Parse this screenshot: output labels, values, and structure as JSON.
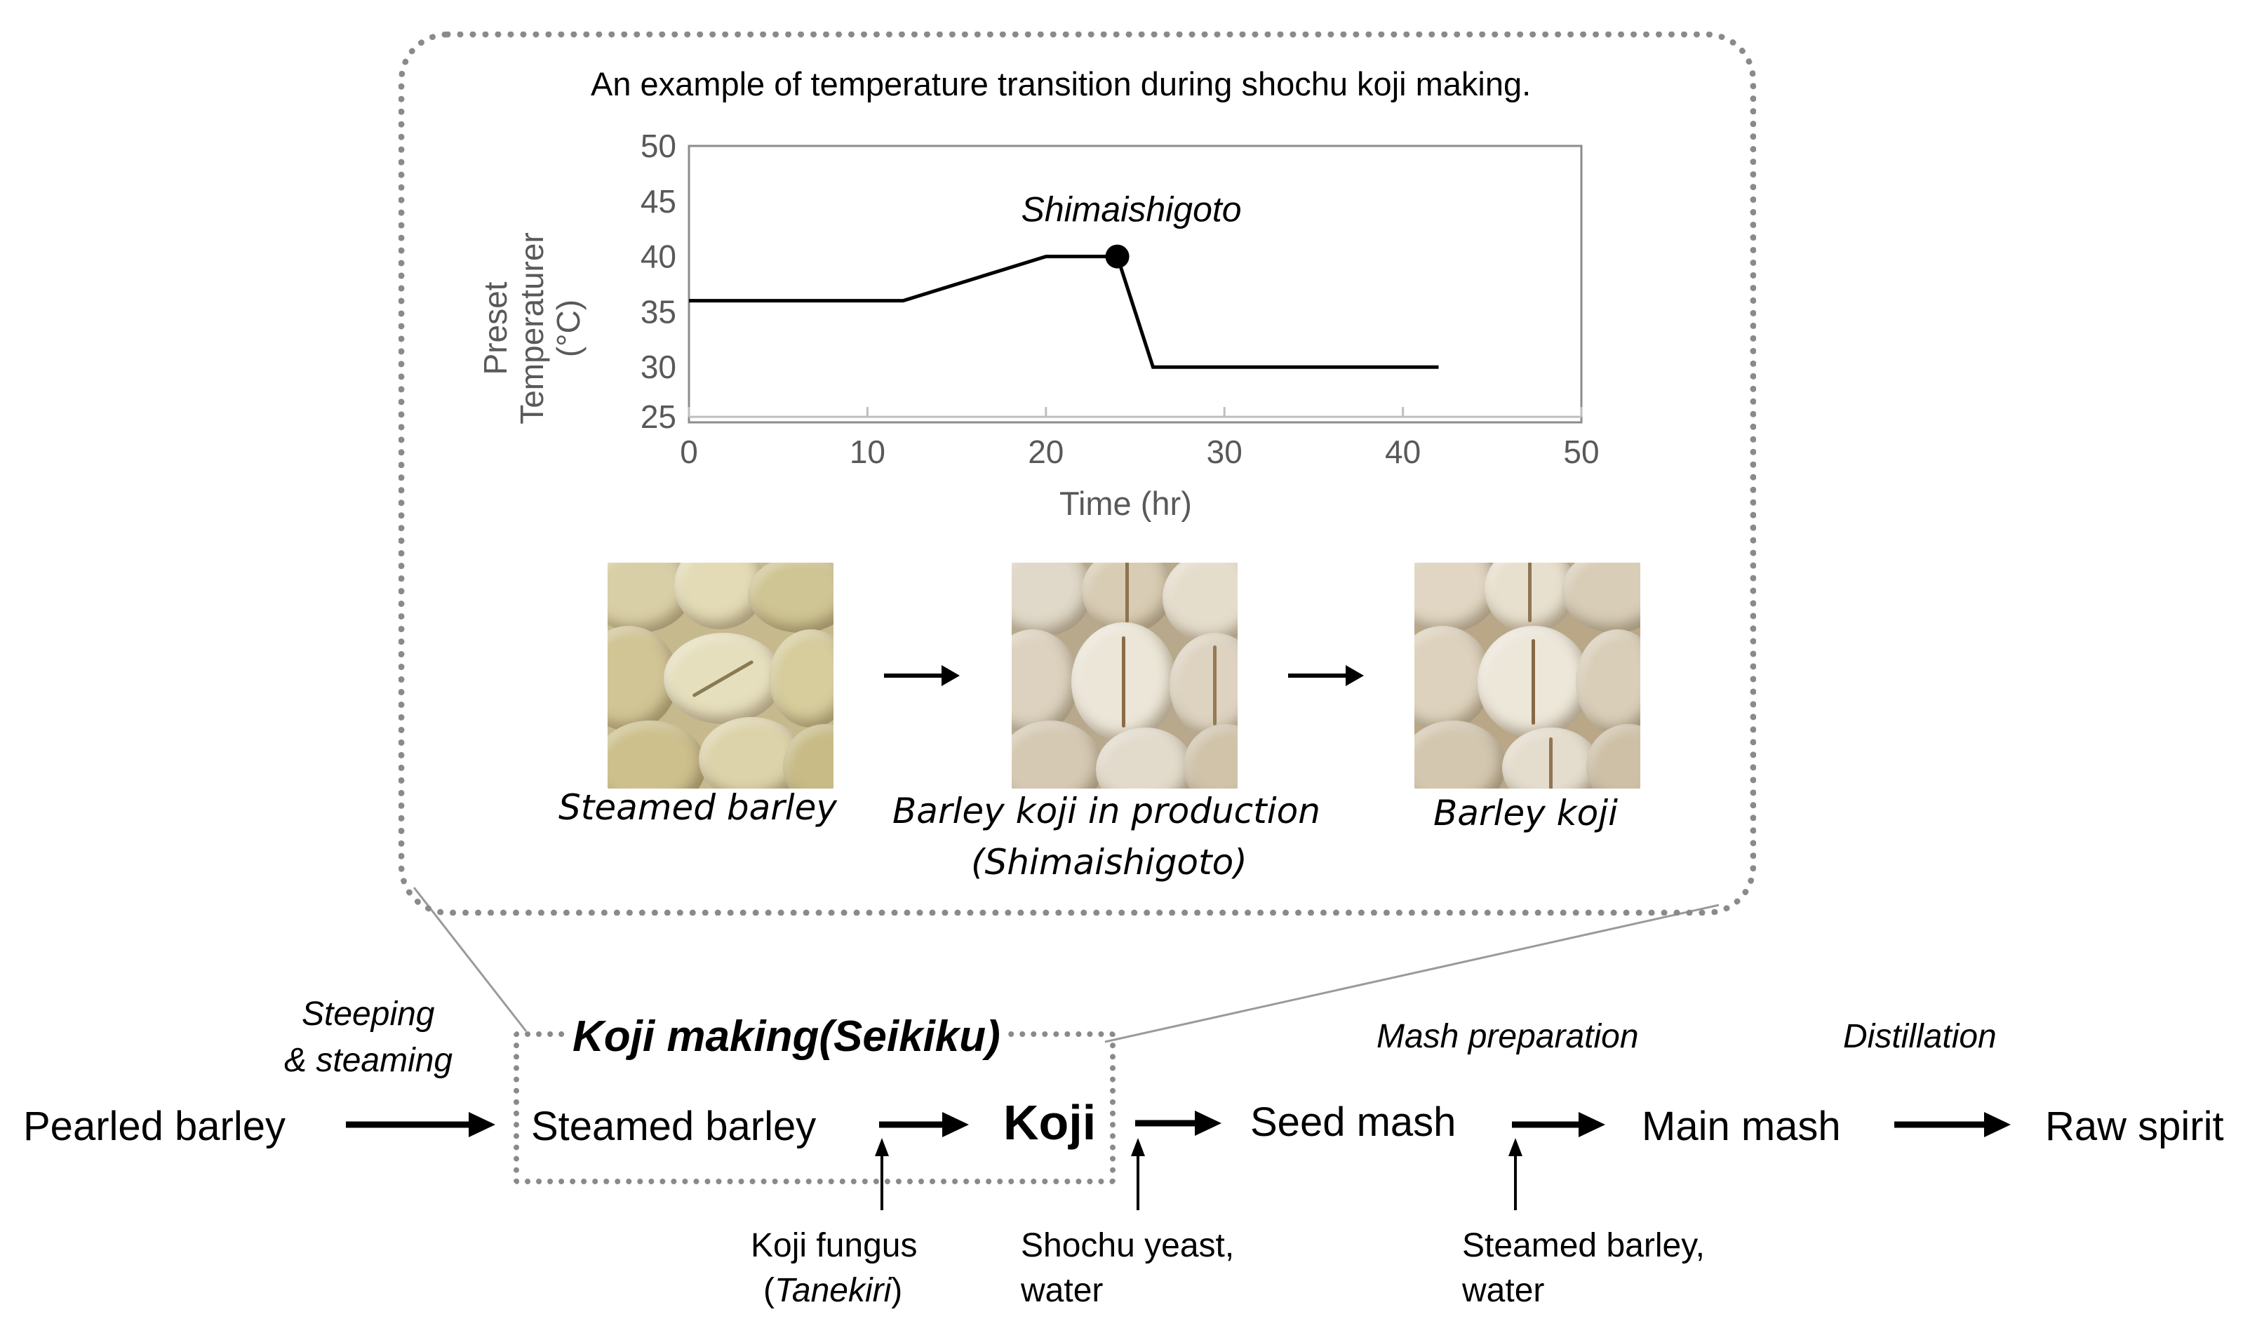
{
  "inset": {
    "title": "An example of temperature transition during shochu koji making.",
    "ylabel_line1": "Preset",
    "ylabel_line2": "Temperaturer",
    "ylabel_line3": "(°C)",
    "annotation": "Shimaishigoto",
    "photos": [
      {
        "caption": "Steamed barley",
        "caption2": ""
      },
      {
        "caption": "Barley koji in production",
        "caption2": "(Shimaishigoto)"
      },
      {
        "caption": "Barley koji",
        "caption2": ""
      }
    ]
  },
  "chart_data": {
    "type": "line",
    "title": "An example of temperature transition during shochu koji making.",
    "xlabel": "Time (hr)",
    "ylabel": "Preset Temperaturer (°C)",
    "xlim": [
      0,
      50
    ],
    "ylim": [
      25,
      50
    ],
    "xticks": [
      0,
      10,
      20,
      30,
      40,
      50
    ],
    "yticks": [
      25,
      30,
      35,
      40,
      45,
      50
    ],
    "x": [
      0,
      12,
      20,
      24,
      26,
      42
    ],
    "y": [
      36,
      36,
      40,
      40,
      30,
      30
    ],
    "marker": {
      "x": 24,
      "y": 40,
      "label": "Shimaishigoto"
    },
    "grid": false
  },
  "flow": {
    "koji_box_title": "Koji making(Seikiku)",
    "steps": {
      "pearled_barley": "Pearled barley",
      "steamed_barley": "Steamed barley",
      "koji": "Koji",
      "seed_mash": "Seed mash",
      "main_mash": "Main mash",
      "raw_spirit": "Raw spirit"
    },
    "process_labels": {
      "steeping_line1": "Steeping",
      "steeping_line2": "& steaming",
      "mash_preparation": "Mash preparation",
      "distillation": "Distillation"
    },
    "inputs": {
      "koji_fungus_line1": "Koji fungus",
      "koji_fungus_line2_open": "(",
      "koji_fungus_line2_it": "Tanekiri",
      "koji_fungus_line2_close": ")",
      "yeast_line1": "Shochu yeast,",
      "yeast_line2": "water",
      "barley_line1": "Steamed barley,",
      "barley_line2": "water"
    }
  }
}
